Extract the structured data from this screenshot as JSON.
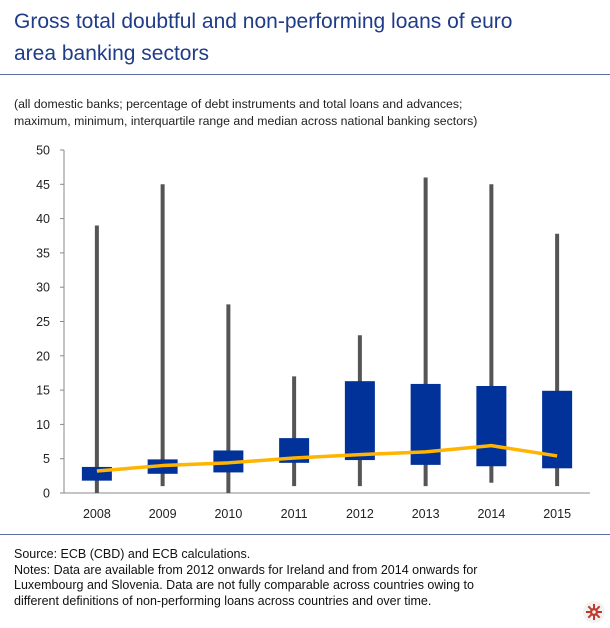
{
  "title_line1": "Gross total doubtful and non-performing loans of euro",
  "title_line2": "area banking sectors",
  "subtitle_line1": "(all domestic banks; percentage of debt instruments and total loans and advances;",
  "subtitle_line2": "maximum, minimum, interquartile range and median across national banking sectors)",
  "source": "Source: ECB (CBD) and ECB calculations.",
  "notes_line1": "Notes: Data are available from 2012 onwards for Ireland and from 2014 onwards for",
  "notes_line2": "Luxembourg and Slovenia. Data are not fully comparable across countries owing to",
  "notes_line3": "different definitions of non-performing loans across countries and over time.",
  "colors": {
    "whisker": "#555555",
    "box": "#003299",
    "median": "#ffb400",
    "axis": "#888888",
    "text": "#1f3c88"
  },
  "chart_data": {
    "type": "boxplot",
    "categories": [
      "2008",
      "2009",
      "2010",
      "2011",
      "2012",
      "2013",
      "2014",
      "2015"
    ],
    "ylim": [
      0,
      50
    ],
    "yticks": [
      0,
      5,
      10,
      15,
      20,
      25,
      30,
      35,
      40,
      45,
      50
    ],
    "series": [
      {
        "name": "Maximum",
        "values": [
          39,
          45,
          27.5,
          17,
          23,
          46,
          45,
          37.8
        ]
      },
      {
        "name": "Minimum",
        "values": [
          0,
          1,
          0,
          1,
          1,
          1,
          1.5,
          1
        ]
      },
      {
        "name": "Upper quartile",
        "values": [
          3.8,
          4.9,
          6.2,
          8.0,
          16.3,
          15.9,
          15.6,
          14.9
        ]
      },
      {
        "name": "Lower quartile",
        "values": [
          1.8,
          2.8,
          3.0,
          4.4,
          4.8,
          4.1,
          3.9,
          3.6
        ]
      },
      {
        "name": "Median",
        "values": [
          3.2,
          4.0,
          4.4,
          5.1,
          5.6,
          6.0,
          6.9,
          5.4
        ]
      }
    ]
  }
}
